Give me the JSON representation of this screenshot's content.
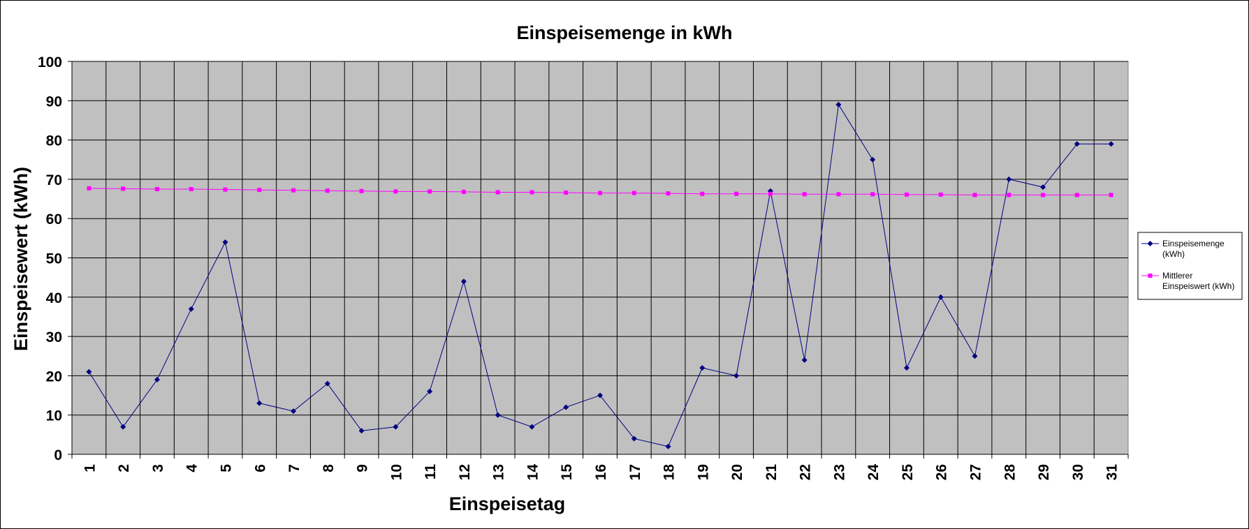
{
  "chart_data": {
    "type": "line",
    "title": "Einspeisemenge in kWh",
    "xlabel": "Einspeisetag",
    "ylabel": "Einspeisewert  (kWh)",
    "categories": [
      "1",
      "2",
      "3",
      "4",
      "5",
      "6",
      "7",
      "8",
      "9",
      "10",
      "11",
      "12",
      "13",
      "14",
      "15",
      "16",
      "17",
      "18",
      "19",
      "20",
      "21",
      "22",
      "23",
      "24",
      "25",
      "26",
      "27",
      "28",
      "29",
      "30",
      "31"
    ],
    "ylim": [
      0,
      100
    ],
    "yticks": [
      0,
      10,
      20,
      30,
      40,
      50,
      60,
      70,
      80,
      90,
      100
    ],
    "grid": true,
    "legend_position": "right",
    "plot_background": "#c0c0c0",
    "series": [
      {
        "name": "Einspeisemenge (kWh)",
        "legend_lines": [
          "Einspeisemenge",
          "(kWh)"
        ],
        "color": "#000080",
        "marker": "diamond",
        "values": [
          21,
          7,
          19,
          37,
          54,
          13,
          11,
          18,
          6,
          7,
          16,
          44,
          10,
          7,
          12,
          15,
          4,
          2,
          22,
          20,
          67,
          24,
          89,
          75,
          22,
          40,
          25,
          70,
          68,
          79,
          79
        ]
      },
      {
        "name": "Mittlerer Einspeiswert (kWh)",
        "legend_lines": [
          "Mittlerer",
          "Einspeiswert (kWh)"
        ],
        "color": "#ff00ff",
        "marker": "square",
        "values": [
          67.7,
          67.6,
          67.5,
          67.5,
          67.4,
          67.3,
          67.2,
          67.1,
          67.0,
          66.9,
          66.9,
          66.8,
          66.7,
          66.7,
          66.6,
          66.5,
          66.5,
          66.4,
          66.3,
          66.3,
          66.3,
          66.2,
          66.2,
          66.2,
          66.1,
          66.1,
          66.0,
          66.0,
          66.0,
          66.0,
          66.0
        ]
      }
    ]
  }
}
